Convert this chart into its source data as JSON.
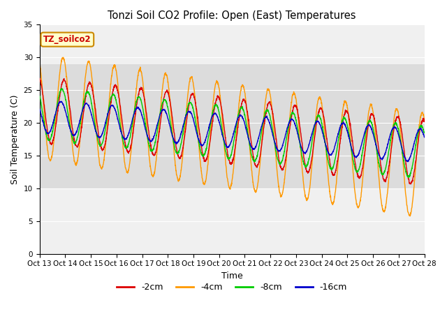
{
  "title": "Tonzi Soil CO2 Profile: Open (East) Temperatures",
  "xlabel": "Time",
  "ylabel": "Soil Temperature (C)",
  "ylim": [
    0,
    35
  ],
  "yticks": [
    0,
    5,
    10,
    15,
    20,
    25,
    30,
    35
  ],
  "x_labels": [
    "Oct 13",
    "Oct 14",
    "Oct 15",
    "Oct 16",
    "Oct 17",
    "Oct 18",
    "Oct 19",
    "Oct 20",
    "Oct 21",
    "Oct 22",
    "Oct 23",
    "Oct 24",
    "Oct 25",
    "Oct 26",
    "Oct 27",
    "Oct 28"
  ],
  "annotation": "TZ_soilco2",
  "colors": {
    "2cm": "#dd0000",
    "4cm": "#ff9900",
    "8cm": "#00cc00",
    "16cm": "#0000cc"
  },
  "legend_labels": [
    "-2cm",
    "-4cm",
    "-8cm",
    "-16cm"
  ],
  "background_color": "#ffffff",
  "plot_bg_light": "#f0f0f0",
  "band_color": "#dcdcdc",
  "band_ylim": [
    10,
    29
  ],
  "figsize": [
    6.4,
    4.8
  ],
  "dpi": 100
}
